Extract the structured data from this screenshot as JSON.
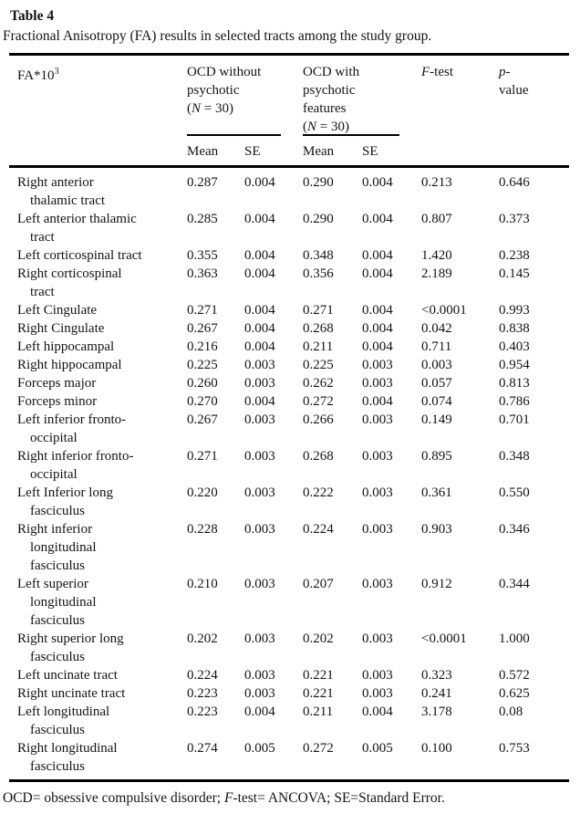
{
  "colors": {
    "background": "#ffffff",
    "text": "#131313",
    "rule": "#000000"
  },
  "title": {
    "label": "Table 4",
    "caption": "Fractional Anisotropy (FA) results in selected tracts among the study group."
  },
  "table": {
    "header": {
      "col1": {
        "base": "FA*10",
        "sup": "3"
      },
      "group1": {
        "lines": [
          "OCD without",
          "psychotic"
        ],
        "n": {
          "pre": "(",
          "it": "N",
          "post": " = 30)"
        },
        "sub": [
          "Mean",
          "SE"
        ]
      },
      "group2": {
        "lines": [
          "OCD with",
          "psychotic",
          "features"
        ],
        "n": {
          "pre": "(",
          "it": "N",
          "post": " = 30)"
        },
        "sub": [
          "Mean",
          "SE"
        ]
      },
      "ftest": {
        "it": "F",
        "rest": "-test"
      },
      "pvalue": {
        "it": "p",
        "rest": "-",
        "line2": "value"
      }
    },
    "rows": [
      {
        "name_lines": [
          "Right anterior",
          "thalamic tract"
        ],
        "mean1": "0.287",
        "se1": "0.004",
        "mean2": "0.290",
        "se2": "0.004",
        "f": "0.213",
        "p": "0.646"
      },
      {
        "name_lines": [
          "Left anterior thalamic",
          "tract"
        ],
        "mean1": "0.285",
        "se1": "0.004",
        "mean2": "0.290",
        "se2": "0.004",
        "f": "0.807",
        "p": "0.373"
      },
      {
        "name_lines": [
          "Left corticospinal tract"
        ],
        "mean1": "0.355",
        "se1": "0.004",
        "mean2": "0.348",
        "se2": "0.004",
        "f": "1.420",
        "p": "0.238"
      },
      {
        "name_lines": [
          "Right corticospinal",
          "tract"
        ],
        "mean1": "0.363",
        "se1": "0.004",
        "mean2": "0.356",
        "se2": "0.004",
        "f": "2.189",
        "p": "0.145"
      },
      {
        "name_lines": [
          "Left Cingulate"
        ],
        "mean1": "0.271",
        "se1": "0.004",
        "mean2": "0.271",
        "se2": "0.004",
        "f": "<0.0001",
        "p": "0.993"
      },
      {
        "name_lines": [
          "Right Cingulate"
        ],
        "mean1": "0.267",
        "se1": "0.004",
        "mean2": "0.268",
        "se2": "0.004",
        "f": "0.042",
        "p": "0.838"
      },
      {
        "name_lines": [
          "Left hippocampal"
        ],
        "mean1": "0.216",
        "se1": "0.004",
        "mean2": "0.211",
        "se2": "0.004",
        "f": "0.711",
        "p": "0.403"
      },
      {
        "name_lines": [
          "Right hippocampal"
        ],
        "mean1": "0.225",
        "se1": "0.003",
        "mean2": "0.225",
        "se2": "0.003",
        "f": "0.003",
        "p": "0.954"
      },
      {
        "name_lines": [
          "Forceps major"
        ],
        "mean1": "0.260",
        "se1": "0.003",
        "mean2": "0.262",
        "se2": "0.003",
        "f": "0.057",
        "p": "0.813"
      },
      {
        "name_lines": [
          "Forceps minor"
        ],
        "mean1": "0.270",
        "se1": "0.004",
        "mean2": "0.272",
        "se2": "0.004",
        "f": "0.074",
        "p": "0.786"
      },
      {
        "name_lines": [
          "Left inferior fronto-",
          "occipital"
        ],
        "mean1": "0.267",
        "se1": "0.003",
        "mean2": "0.266",
        "se2": "0.003",
        "f": "0.149",
        "p": "0.701"
      },
      {
        "name_lines": [
          "Right inferior fronto-",
          "occipital"
        ],
        "mean1": "0.271",
        "se1": "0.003",
        "mean2": "0.268",
        "se2": "0.003",
        "f": "0.895",
        "p": "0.348"
      },
      {
        "name_lines": [
          "Left Inferior long",
          "fasciculus"
        ],
        "mean1": "0.220",
        "se1": "0.003",
        "mean2": "0.222",
        "se2": "0.003",
        "f": "0.361",
        "p": "0.550"
      },
      {
        "name_lines": [
          "Right inferior",
          "longitudinal",
          "fasciculus"
        ],
        "mean1": "0.228",
        "se1": "0.003",
        "mean2": "0.224",
        "se2": "0.003",
        "f": "0.903",
        "p": "0.346"
      },
      {
        "name_lines": [
          "Left superior",
          "longitudinal",
          "fasciculus"
        ],
        "mean1": "0.210",
        "se1": "0.003",
        "mean2": "0.207",
        "se2": "0.003",
        "f": "0.912",
        "p": "0.344"
      },
      {
        "name_lines": [
          "Right superior long",
          "fasciculus"
        ],
        "mean1": "0.202",
        "se1": "0.003",
        "mean2": "0.202",
        "se2": "0.003",
        "f": "<0.0001",
        "p": "1.000"
      },
      {
        "name_lines": [
          "Left uncinate tract"
        ],
        "mean1": "0.224",
        "se1": "0.003",
        "mean2": "0.221",
        "se2": "0.003",
        "f": "0.323",
        "p": "0.572"
      },
      {
        "name_lines": [
          "Right uncinate tract"
        ],
        "mean1": "0.223",
        "se1": "0.003",
        "mean2": "0.221",
        "se2": "0.003",
        "f": "0.241",
        "p": "0.625"
      },
      {
        "name_lines": [
          "Left longitudinal",
          "fasciculus"
        ],
        "mean1": "0.223",
        "se1": "0.004",
        "mean2": "0.211",
        "se2": "0.004",
        "f": "3.178",
        "p": "0.08"
      },
      {
        "name_lines": [
          "Right longitudinal",
          "fasciculus"
        ],
        "mean1": "0.274",
        "se1": "0.005",
        "mean2": "0.272",
        "se2": "0.005",
        "f": "0.100",
        "p": "0.753"
      }
    ]
  },
  "footnote": {
    "pre": "OCD= obsessive compulsive disorder; ",
    "it": "F",
    "post": "-test= ANCOVA; SE=Standard Error."
  }
}
